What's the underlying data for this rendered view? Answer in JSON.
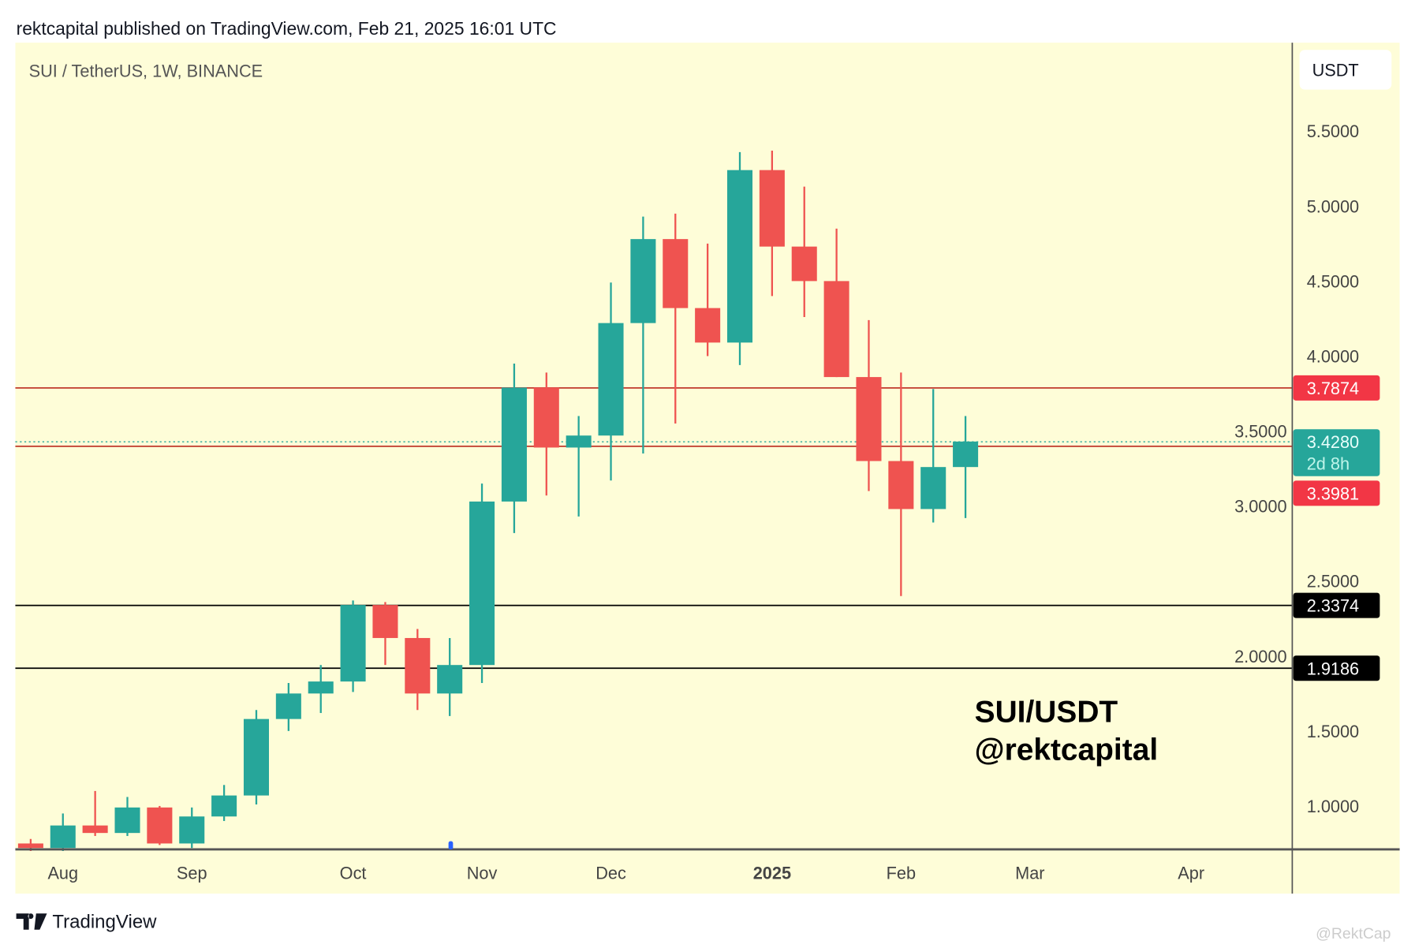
{
  "header": {
    "published": "rektcapital published on TradingView.com, Feb 21, 2025 16:01 UTC"
  },
  "footer": {
    "logo_text": "TradingView",
    "watermark": "@RektCap"
  },
  "colors": {
    "background": "#fefdd8",
    "up": "#26a69a",
    "down": "#ef5350",
    "resistance_line": "#c0392b",
    "support_line": "#000000",
    "label_red": "#f23645"
  },
  "chart_data": {
    "type": "candlestick",
    "title": "SUI / TetherUS, 1W, BINANCE",
    "currency": "USDT",
    "annotation": [
      "SUI/USDT",
      "@rektcapital"
    ],
    "ylim": [
      0.72,
      5.8
    ],
    "y_ticks": [
      "5.5000",
      "5.0000",
      "4.5000",
      "4.0000",
      "3.5000",
      "3.0000",
      "2.5000",
      "2.0000",
      "1.5000",
      "1.0000"
    ],
    "x_labels": [
      {
        "label": "Aug",
        "index": 1,
        "bold": false
      },
      {
        "label": "Sep",
        "index": 5,
        "bold": false
      },
      {
        "label": "Oct",
        "index": 10,
        "bold": false
      },
      {
        "label": "Nov",
        "index": 14,
        "bold": false
      },
      {
        "label": "Dec",
        "index": 18,
        "bold": false
      },
      {
        "label": "2025",
        "index": 23,
        "bold": true
      },
      {
        "label": "Feb",
        "index": 27,
        "bold": false
      },
      {
        "label": "Mar",
        "index": 31,
        "bold": false
      },
      {
        "label": "Apr",
        "index": 36,
        "bold": false
      }
    ],
    "candles": [
      [
        0.75,
        0.78,
        0.7,
        0.72
      ],
      [
        0.72,
        0.95,
        0.7,
        0.87
      ],
      [
        0.87,
        1.1,
        0.8,
        0.82
      ],
      [
        0.82,
        1.06,
        0.8,
        0.99
      ],
      [
        0.99,
        1.0,
        0.74,
        0.75
      ],
      [
        0.75,
        0.99,
        0.72,
        0.93
      ],
      [
        0.93,
        1.14,
        0.9,
        1.07
      ],
      [
        1.07,
        1.64,
        1.01,
        1.58
      ],
      [
        1.58,
        1.82,
        1.5,
        1.75
      ],
      [
        1.75,
        1.94,
        1.62,
        1.83
      ],
      [
        1.83,
        2.37,
        1.76,
        2.34
      ],
      [
        2.34,
        2.36,
        1.94,
        2.12
      ],
      [
        2.12,
        2.18,
        1.64,
        1.75
      ],
      [
        1.75,
        2.12,
        1.6,
        1.94
      ],
      [
        1.94,
        3.15,
        1.82,
        3.03
      ],
      [
        3.03,
        3.95,
        2.82,
        3.79
      ],
      [
        3.79,
        3.89,
        3.07,
        3.39
      ],
      [
        3.39,
        3.6,
        2.93,
        3.47
      ],
      [
        3.47,
        4.49,
        3.17,
        4.22
      ],
      [
        4.22,
        4.93,
        3.35,
        4.78
      ],
      [
        4.78,
        4.95,
        3.55,
        4.32
      ],
      [
        4.32,
        4.75,
        4.0,
        4.09
      ],
      [
        4.09,
        5.36,
        3.94,
        5.24
      ],
      [
        5.24,
        5.37,
        4.4,
        4.73
      ],
      [
        4.73,
        5.13,
        4.26,
        4.5
      ],
      [
        4.5,
        4.85,
        3.86,
        3.86
      ],
      [
        3.86,
        4.24,
        3.1,
        3.3
      ],
      [
        3.3,
        3.89,
        2.4,
        2.98
      ],
      [
        2.98,
        3.78,
        2.89,
        3.26
      ],
      [
        3.26,
        3.6,
        2.92,
        3.43
      ]
    ],
    "candle_fields": [
      "open",
      "high",
      "low",
      "close"
    ],
    "hlines": [
      {
        "value": 3.7874,
        "label": "3.7874",
        "color": "#c0392b",
        "label_bg": "#f23645"
      },
      {
        "value": 3.3981,
        "label": "3.3981",
        "color": "#c0392b",
        "label_bg": "#f23645"
      },
      {
        "value": 2.3374,
        "label": "2.3374",
        "color": "#000000",
        "label_bg": "#000000"
      },
      {
        "value": 1.9186,
        "label": "1.9186",
        "color": "#000000",
        "label_bg": "#000000"
      }
    ],
    "last_price": {
      "value": 3.428,
      "label": "3.4280",
      "countdown": "2d 8h"
    }
  }
}
